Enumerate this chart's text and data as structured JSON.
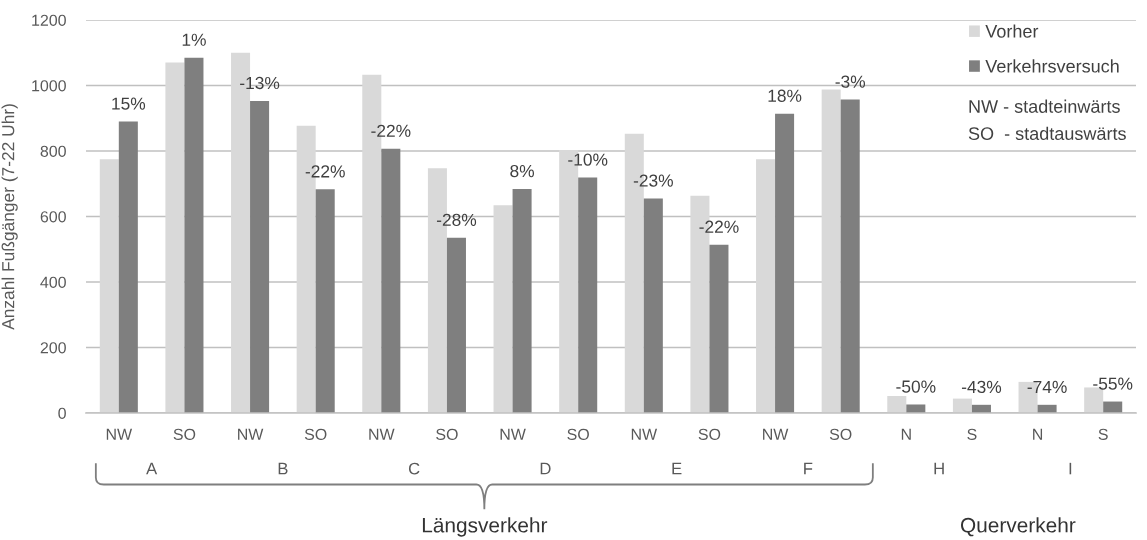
{
  "chart_data": {
    "type": "bar",
    "ylabel": "Anzahl Fußgänger (7-22 Uhr)",
    "categories": [
      "NW",
      "SO",
      "NW",
      "SO",
      "NW",
      "SO",
      "NW",
      "SO",
      "NW",
      "SO",
      "NW",
      "SO",
      "N",
      "S",
      "N",
      "S"
    ],
    "series": [
      {
        "name": "Vorher",
        "color": "#d9d9d9",
        "values": [
          775,
          1070,
          1100,
          877,
          1033,
          747,
          634,
          803,
          853,
          663,
          775,
          988,
          52,
          44,
          95,
          78
        ]
      },
      {
        "name": "Verkehrsversuch",
        "color": "#7f7f7f",
        "values": [
          890,
          1085,
          953,
          683,
          807,
          535,
          684,
          719,
          655,
          514,
          914,
          957,
          26,
          25,
          25,
          35
        ]
      }
    ],
    "ylim": [
      0,
      1200
    ],
    "yticks": [
      0,
      200,
      400,
      600,
      800,
      1000,
      1200
    ],
    "grid": "y",
    "legend": "top right",
    "annotations": [
      "15%",
      "1%",
      "-13%",
      "-22%",
      "-22%",
      "-28%",
      "8%",
      "-10%",
      "-23%",
      "-22%",
      "18%",
      "-3%",
      "-50%",
      "-43%",
      "-74%",
      "-55%",
      "A",
      "B",
      "C",
      "D",
      "E",
      "F",
      "H",
      "I",
      "Längsverkehr",
      "Querverkehr",
      "NW - stadteinwärts",
      "SO  - stadtauswärts"
    ]
  }
}
